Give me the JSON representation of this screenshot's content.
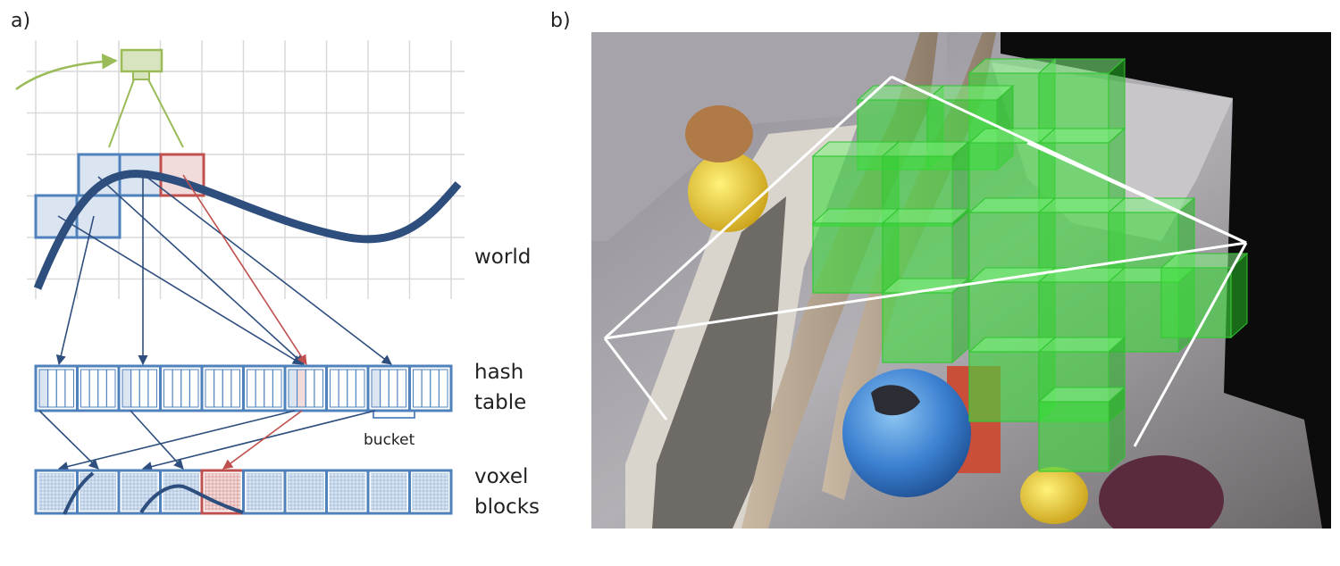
{
  "panel_a": {
    "label": "a)",
    "world_label": "world",
    "hash_label_line1": "hash",
    "hash_label_line2": "table",
    "bucket_label": "bucket",
    "voxel_label_line1": "voxel",
    "voxel_label_line2": "blocks"
  },
  "panel_b": {
    "label": "b)"
  },
  "colors": {
    "grid": "#d9d9d9",
    "block_blue_stroke": "#4f81bd",
    "block_blue_fill": "#dbe5f1",
    "block_red_stroke": "#c0504d",
    "block_red_fill": "#f2dcdb",
    "surface": "#2e4e7e",
    "camera_green": "#9bbb59",
    "voxel_green": "#3ddc3d",
    "frustum_white": "#ffffff",
    "scene_dark": "#0c0c0c"
  }
}
